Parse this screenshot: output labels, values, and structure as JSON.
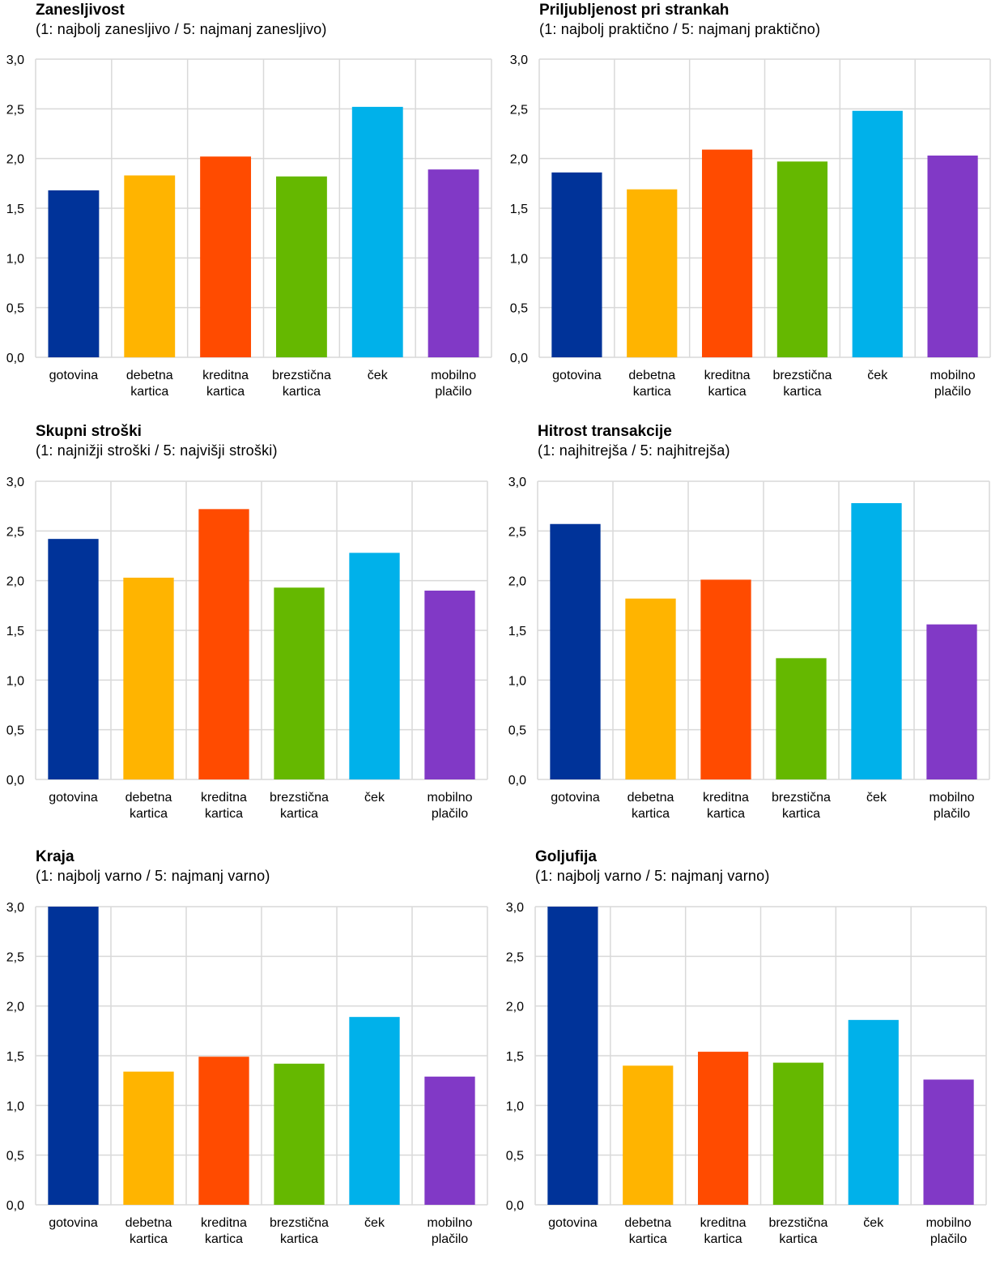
{
  "colors": {
    "gotovina": "#003399",
    "debetna kartica": "#ffb400",
    "kreditna kartica": "#ff4b00",
    "brezstična kartica": "#65b800",
    "ček": "#00b1ea",
    "mobilno plačilo": "#8139c6",
    "grid": "#d9d9d9"
  },
  "chart_data": [
    {
      "type": "bar",
      "title": "Zanesljivost",
      "subtitle": "(1: najbolj zanesljivo / 5: najmanj zanesljivo)",
      "categories": [
        [
          "gotovina"
        ],
        [
          "debetna",
          "kartica"
        ],
        [
          "kreditna",
          "kartica"
        ],
        [
          "brezstična",
          "kartica"
        ],
        [
          "ček"
        ],
        [
          "mobilno",
          "plačilo"
        ]
      ],
      "values": [
        1.68,
        1.83,
        2.02,
        1.82,
        2.52,
        1.89
      ],
      "yticks": [
        "0,0",
        "0,5",
        "1,0",
        "1,5",
        "2,0",
        "2,5",
        "3,0"
      ],
      "ylim": [
        0,
        3
      ],
      "grid": true
    },
    {
      "type": "bar",
      "title": "Priljubljenost pri strankah",
      "subtitle": "(1: najbolj praktično / 5: najmanj praktično)",
      "categories": [
        [
          "gotovina"
        ],
        [
          "debetna",
          "kartica"
        ],
        [
          "kreditna",
          "kartica"
        ],
        [
          "brezstična",
          "kartica"
        ],
        [
          "ček"
        ],
        [
          "mobilno",
          "plačilo"
        ]
      ],
      "values": [
        1.86,
        1.69,
        2.09,
        1.97,
        2.48,
        2.03
      ],
      "yticks": [
        "0,0",
        "0,5",
        "1,0",
        "1,5",
        "2,0",
        "2,5",
        "3,0"
      ],
      "ylim": [
        0,
        3
      ],
      "grid": true
    },
    {
      "type": "bar",
      "title": "Skupni stroški",
      "subtitle": "(1: najnižji stroški / 5: najvišji stroški)",
      "categories": [
        [
          "gotovina"
        ],
        [
          "debetna",
          "kartica"
        ],
        [
          "kreditna",
          "kartica"
        ],
        [
          "brezstična",
          "kartica"
        ],
        [
          "ček"
        ],
        [
          "mobilno",
          "plačilo"
        ]
      ],
      "values": [
        2.42,
        2.03,
        2.72,
        1.93,
        2.28,
        1.9
      ],
      "yticks": [
        "0,0",
        "0,5",
        "1,0",
        "1,5",
        "2,0",
        "2,5",
        "3,0"
      ],
      "ylim": [
        0,
        3
      ],
      "grid": true
    },
    {
      "type": "bar",
      "title": "Hitrost transakcije",
      "subtitle": "(1: najhitrejša / 5: najhitrejša)",
      "categories": [
        [
          "gotovina"
        ],
        [
          "debetna",
          "kartica"
        ],
        [
          "kreditna",
          "kartica"
        ],
        [
          "brezstična",
          "kartica"
        ],
        [
          "ček"
        ],
        [
          "mobilno",
          "plačilo"
        ]
      ],
      "values": [
        2.57,
        1.82,
        2.01,
        1.22,
        2.78,
        1.56
      ],
      "yticks": [
        "0,0",
        "0,5",
        "1,0",
        "1,5",
        "2,0",
        "2,5",
        "3,0"
      ],
      "ylim": [
        0,
        3
      ],
      "grid": true
    },
    {
      "type": "bar",
      "title": "Kraja",
      "subtitle": "(1: najbolj varno / 5: najmanj varno)",
      "categories": [
        [
          "gotovina"
        ],
        [
          "debetna",
          "kartica"
        ],
        [
          "kreditna",
          "kartica"
        ],
        [
          "brezstična",
          "kartica"
        ],
        [
          "ček"
        ],
        [
          "mobilno",
          "plačilo"
        ]
      ],
      "values": [
        3.0,
        1.34,
        1.49,
        1.42,
        1.89,
        1.29
      ],
      "yticks": [
        "0,0",
        "0,5",
        "1,0",
        "1,5",
        "2,0",
        "2,5",
        "3,0"
      ],
      "ylim": [
        0,
        3
      ],
      "grid": true
    },
    {
      "type": "bar",
      "title": "Goljufija",
      "subtitle": "(1: najbolj varno / 5: najmanj varno)",
      "categories": [
        [
          "gotovina"
        ],
        [
          "debetna",
          "kartica"
        ],
        [
          "kreditna",
          "kartica"
        ],
        [
          "brezstična",
          "kartica"
        ],
        [
          "ček"
        ],
        [
          "mobilno",
          "plačilo"
        ]
      ],
      "values": [
        3.0,
        1.4,
        1.54,
        1.43,
        1.86,
        1.26
      ],
      "yticks": [
        "0,0",
        "0,5",
        "1,0",
        "1,5",
        "2,0",
        "2,5",
        "3,0"
      ],
      "ylim": [
        0,
        3
      ],
      "grid": true
    }
  ]
}
